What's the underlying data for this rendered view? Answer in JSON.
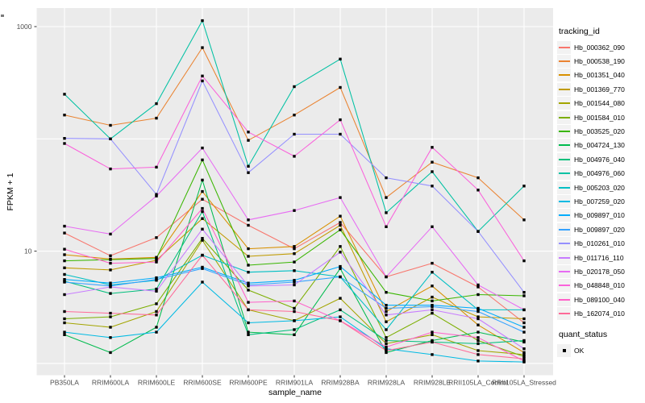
{
  "figure": {
    "background": "#FFFFFF",
    "panel_background": "#EBEBEB",
    "grid_color": "#FFFFFF",
    "tick_color": "#333333",
    "tick_label_color": "#4D4D4D",
    "point_color": "#000000"
  },
  "chart_data": {
    "type": "line",
    "title": "",
    "xlabel": "sample_name",
    "ylabel": "FPKM + 1",
    "y_scale": "log10",
    "ylim": [
      0.75,
      1500
    ],
    "grid": true,
    "legend_position": "right",
    "y_axis_breaks": [
      {
        "label": "10",
        "value": 10
      },
      {
        "label": "1000",
        "value": 1000
      }
    ],
    "y_gridlines": [
      1,
      10,
      100,
      1000
    ],
    "categories": [
      "PB350LA",
      "RRIM600LA",
      "RRIM600LE",
      "RRIM600SE",
      "RRIM600PE",
      "RRIM901LA",
      "RRIM928BA",
      "RRIM928LA",
      "RRIM928LE",
      "RRII105LA_Control",
      "RRII105LA_Stressed"
    ],
    "legend_title": "tracking_id",
    "legend2_title": "quant_status",
    "legend2_items": [
      "OK"
    ],
    "series": [
      {
        "name": "Hb_000362_090",
        "color": "#F8766D",
        "values": [
          14.5,
          9.1,
          13.2,
          29,
          17,
          10.5,
          18,
          5.9,
          7.8,
          4.8,
          2.3
        ]
      },
      {
        "name": "Hb_000538_190",
        "color": "#EA8331",
        "values": [
          163,
          132,
          153,
          650,
          97,
          163,
          287,
          30,
          62,
          45,
          19
        ]
      },
      {
        "name": "Hb_001351_040",
        "color": "#D89000",
        "values": [
          9.3,
          8.5,
          8.8,
          34,
          10.5,
          11,
          20.5,
          2.9,
          4.9,
          2.2,
          1.25
        ]
      },
      {
        "name": "Hb_001369_770",
        "color": "#C09B00",
        "values": [
          7.1,
          6.8,
          8.3,
          19.5,
          9.0,
          9.5,
          17,
          2.35,
          3.9,
          2.6,
          2.5
        ]
      },
      {
        "name": "Hb_001544_080",
        "color": "#A3A500",
        "values": [
          2.3,
          2.1,
          2.9,
          12.5,
          3.0,
          2.4,
          3.8,
          1.5,
          1.8,
          1.3,
          1.2
        ]
      },
      {
        "name": "Hb_001584_010",
        "color": "#7CAE00",
        "values": [
          2.5,
          2.6,
          3.4,
          13,
          4.5,
          3.1,
          11,
          1.7,
          2.8,
          1.6,
          1.15
        ]
      },
      {
        "name": "Hb_003525_020",
        "color": "#39B600",
        "values": [
          8.2,
          8.4,
          8.6,
          65,
          7.5,
          8.0,
          15.5,
          4.3,
          3.6,
          4.1,
          4.0
        ]
      },
      {
        "name": "Hb_004724_130",
        "color": "#00BB4E",
        "values": [
          1.8,
          1.25,
          2.1,
          43,
          1.9,
          1.8,
          7.0,
          1.25,
          1.6,
          1.9,
          1.55
        ]
      },
      {
        "name": "Hb_004976_040",
        "color": "#00BF7C",
        "values": [
          5.4,
          4.2,
          4.6,
          22.5,
          1.8,
          2.0,
          3.0,
          1.6,
          1.55,
          1.5,
          1.6
        ]
      },
      {
        "name": "Hb_004976_060",
        "color": "#00C1A3",
        "values": [
          250,
          100,
          206,
          1130,
          57,
          292,
          514,
          22,
          51,
          15,
          38
        ]
      },
      {
        "name": "Hb_005203_020",
        "color": "#00BFC4",
        "values": [
          6.2,
          5.0,
          5.5,
          9.2,
          6.5,
          6.7,
          5.9,
          2.0,
          6.5,
          3.0,
          3.0
        ]
      },
      {
        "name": "Hb_007259_020",
        "color": "#00BAE3",
        "values": [
          1.9,
          1.7,
          1.9,
          5.3,
          2.3,
          2.4,
          2.6,
          1.35,
          1.2,
          1.05,
          1.03
        ]
      },
      {
        "name": "Hb_009897_010",
        "color": "#00ACFC",
        "values": [
          5.6,
          5.2,
          5.8,
          7.2,
          5.2,
          5.5,
          7.3,
          3.3,
          3.3,
          3.1,
          2.1
        ]
      },
      {
        "name": "Hb_009897_020",
        "color": "#35A2FF",
        "values": [
          5.3,
          4.9,
          5.6,
          7.0,
          5.0,
          5.3,
          5.9,
          3.1,
          3.2,
          2.9,
          1.9
        ]
      },
      {
        "name": "Hb_010261_010",
        "color": "#9590FF",
        "values": [
          101,
          100,
          32,
          328,
          50,
          110,
          110,
          45,
          38,
          15,
          4.3
        ]
      },
      {
        "name": "Hb_011716_110",
        "color": "#C77CFF",
        "values": [
          4.1,
          4.8,
          4.4,
          15.7,
          4.9,
          5.0,
          9.8,
          2.7,
          3.0,
          2.5,
          1.35
        ]
      },
      {
        "name": "Hb_020178_050",
        "color": "#E76BF3",
        "values": [
          16.7,
          14.2,
          31,
          83,
          19,
          23,
          30,
          5.9,
          16.5,
          5.0,
          3.0
        ]
      },
      {
        "name": "Hb_048848_010",
        "color": "#FA62DB",
        "values": [
          91,
          54,
          56,
          363,
          115,
          70,
          148,
          16.5,
          84,
          35,
          8.2
        ]
      },
      {
        "name": "Hb_089100_040",
        "color": "#FF61C9",
        "values": [
          10.4,
          7.8,
          8.0,
          24,
          3.5,
          3.6,
          2.4,
          1.4,
          1.9,
          1.7,
          1.05
        ]
      },
      {
        "name": "Hb_162074_010",
        "color": "#FF6A98",
        "values": [
          2.9,
          2.8,
          2.7,
          9.2,
          3.0,
          2.9,
          2.4,
          1.3,
          1.55,
          1.2,
          1.1
        ]
      }
    ]
  }
}
